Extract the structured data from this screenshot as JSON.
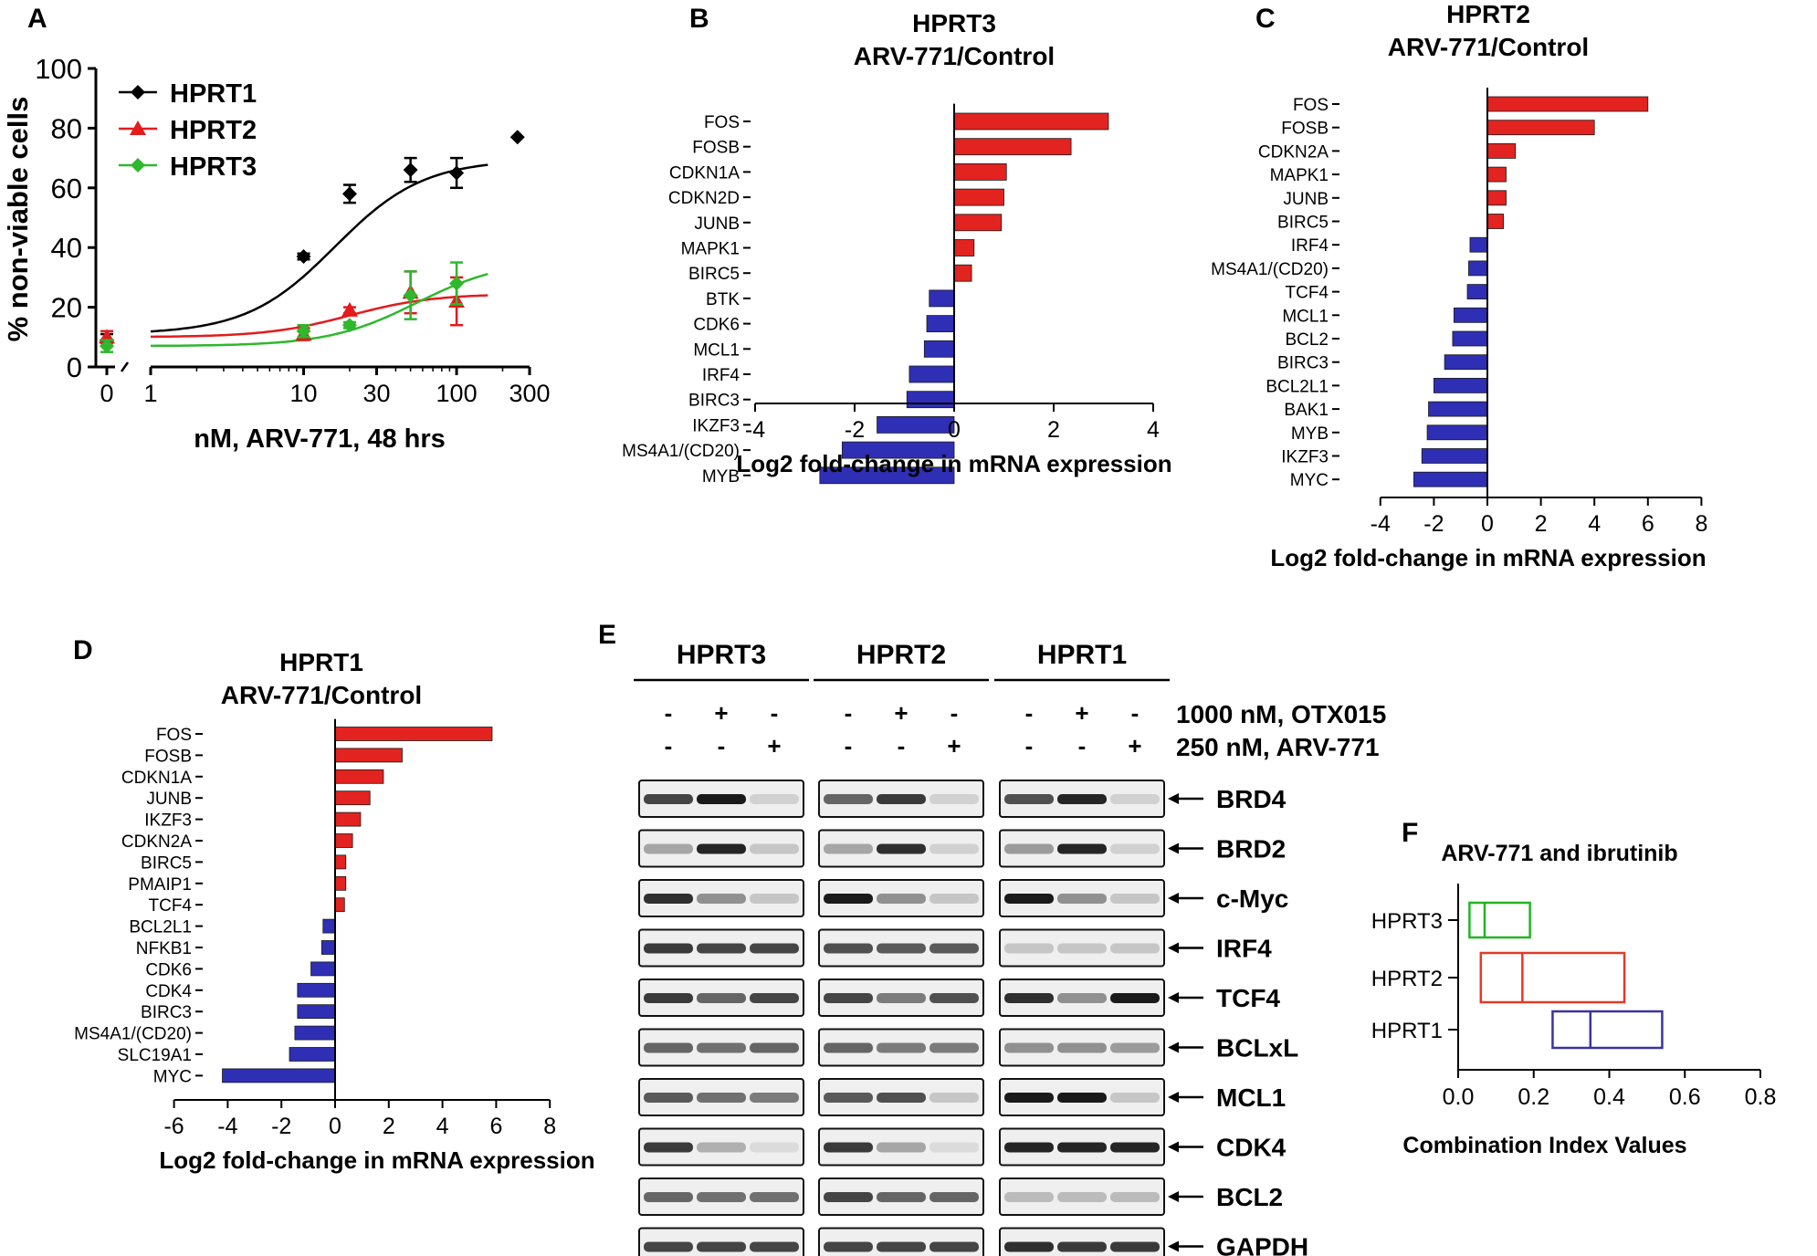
{
  "panel_labels": [
    "A",
    "B",
    "C",
    "D",
    "E",
    "F"
  ],
  "chart_data": [
    {
      "panel": "A",
      "type": "scatter",
      "title": "",
      "xlabel": "nM, ARV-771, 48 hrs",
      "ylabel": "% non-viable cells",
      "xscale": "log with 0 break",
      "xticks": [
        "0",
        "1",
        "10",
        "30",
        "100",
        "300"
      ],
      "yticks": [
        "0",
        "20",
        "40",
        "60",
        "80",
        "100"
      ],
      "ylim": [
        0,
        100
      ],
      "legend_position": "top-left",
      "colors": {
        "HPRT1": "#000000",
        "HPRT2": "#e41a1c",
        "HPRT3": "#2db82d"
      },
      "series": [
        {
          "name": "HPRT1",
          "marker": "diamond",
          "points": [
            {
              "x": 0,
              "y": 9,
              "err": 2
            },
            {
              "x": 10,
              "y": 37,
              "err": 1
            },
            {
              "x": 20,
              "y": 58,
              "err": 3
            },
            {
              "x": 50,
              "y": 66,
              "err": 4
            },
            {
              "x": 100,
              "y": 65,
              "err": 5
            },
            {
              "x": 250,
              "y": 77,
              "err": 0
            }
          ],
          "fit": {
            "bottom": 11,
            "top": 69.5,
            "ec50": 16,
            "hill": 1.5
          }
        },
        {
          "name": "HPRT2",
          "marker": "triangle",
          "points": [
            {
              "x": 0,
              "y": 10,
              "err": 2
            },
            {
              "x": 10,
              "y": 11,
              "err": 2
            },
            {
              "x": 20,
              "y": 19,
              "err": 1
            },
            {
              "x": 50,
              "y": 25,
              "err": 7
            },
            {
              "x": 100,
              "y": 22,
              "err": 8
            }
          ],
          "fit": {
            "bottom": 10,
            "top": 24.5,
            "ec50": 20,
            "hill": 1.6
          }
        },
        {
          "name": "HPRT3",
          "marker": "diamond",
          "points": [
            {
              "x": 0,
              "y": 7,
              "err": 2
            },
            {
              "x": 10,
              "y": 12,
              "err": 2
            },
            {
              "x": 20,
              "y": 14,
              "err": 1
            },
            {
              "x": 50,
              "y": 24,
              "err": 8
            },
            {
              "x": 100,
              "y": 28,
              "err": 7
            }
          ],
          "fit": {
            "bottom": 7,
            "top": 36,
            "ec50": 55,
            "hill": 1.5
          }
        }
      ]
    },
    {
      "panel": "B",
      "type": "bar",
      "orientation": "horizontal",
      "title": "HPRT3",
      "subtitle": "ARV-771/Control",
      "xlabel": "Log2 fold-change in mRNA expression",
      "xlim": [
        -4,
        4
      ],
      "xticks": [
        "-4",
        "-2",
        "0",
        "2",
        "4"
      ],
      "categories": [
        "FOS",
        "FOSB",
        "CDKN1A",
        "CDKN2D",
        "JUNB",
        "MAPK1",
        "BIRC5",
        "BTK",
        "CDK6",
        "MCL1",
        "IRF4",
        "BIRC3",
        "IKZF3",
        "MS4A1/(CD20)",
        "MYB"
      ],
      "values": [
        3.1,
        2.35,
        1.05,
        1.0,
        0.95,
        0.4,
        0.35,
        -0.5,
        -0.55,
        -0.6,
        -0.9,
        -0.95,
        -1.55,
        -2.25,
        -2.7
      ]
    },
    {
      "panel": "C",
      "type": "bar",
      "orientation": "horizontal",
      "title": "HPRT2",
      "subtitle": "ARV-771/Control",
      "xlabel": "Log2 fold-change in mRNA expression",
      "xlim": [
        -4,
        8
      ],
      "xticks": [
        "-4",
        "-2",
        "0",
        "2",
        "4",
        "6",
        "8"
      ],
      "categories": [
        "FOS",
        "FOSB",
        "CDKN2A",
        "MAPK1",
        "JUNB",
        "BIRC5",
        "IRF4",
        "MS4A1/(CD20)",
        "TCF4",
        "MCL1",
        "BCL2",
        "BIRC3",
        "BCL2L1",
        "BAK1",
        "MYB",
        "IKZF3",
        "MYC"
      ],
      "values": [
        6.0,
        4.0,
        1.05,
        0.7,
        0.7,
        0.6,
        -0.65,
        -0.7,
        -0.75,
        -1.25,
        -1.3,
        -1.6,
        -2.0,
        -2.2,
        -2.25,
        -2.45,
        -2.75
      ]
    },
    {
      "panel": "D",
      "type": "bar",
      "orientation": "horizontal",
      "title": "HPRT1",
      "subtitle": "ARV-771/Control",
      "xlabel": "Log2 fold-change in mRNA expression",
      "xlim": [
        -6,
        8
      ],
      "xticks": [
        "-6",
        "-4",
        "-2",
        "0",
        "2",
        "4",
        "6",
        "8"
      ],
      "categories": [
        "FOS",
        "FOSB",
        "CDKN1A",
        "JUNB",
        "IKZF3",
        "CDKN2A",
        "BIRC5",
        "PMAIP1",
        "TCF4",
        "BCL2L1",
        "NFKB1",
        "CDK6",
        "CDK4",
        "BIRC3",
        "MS4A1/(CD20)",
        "SLC19A1",
        "MYC"
      ],
      "values": [
        5.85,
        2.5,
        1.8,
        1.3,
        0.95,
        0.65,
        0.4,
        0.4,
        0.35,
        -0.45,
        -0.5,
        -0.9,
        -1.4,
        -1.4,
        -1.5,
        -1.7,
        -4.2
      ]
    },
    {
      "panel": "F",
      "type": "box",
      "orientation": "horizontal",
      "title": "ARV-771 and ibrutinib",
      "xlabel": "Combination Index Values",
      "xlim": [
        0,
        0.8
      ],
      "xticks": [
        "0.0",
        "0.2",
        "0.4",
        "0.6",
        "0.8"
      ],
      "categories": [
        "HPRT3",
        "HPRT2",
        "HPRT1"
      ],
      "colors": [
        "#22b522",
        "#e23a2a",
        "#3a34a0"
      ],
      "boxes": [
        {
          "name": "HPRT3",
          "min": 0.03,
          "median": 0.07,
          "max": 0.19
        },
        {
          "name": "HPRT2",
          "min": 0.06,
          "median": 0.17,
          "max": 0.44
        },
        {
          "name": "HPRT1",
          "min": 0.25,
          "median": 0.35,
          "max": 0.54
        }
      ]
    }
  ],
  "blot": {
    "cell_lines": [
      "HPRT3",
      "HPRT2",
      "HPRT1"
    ],
    "conditions": [
      {
        "label": "1000 nM, OTX015",
        "signs": [
          "-",
          "+",
          "-"
        ]
      },
      {
        "label": "250 nM, ARV-771",
        "signs": [
          "-",
          "-",
          "+"
        ]
      }
    ],
    "proteins": [
      {
        "name": "BRD4",
        "intensities": [
          [
            0.75,
            0.95,
            0.1
          ],
          [
            0.6,
            0.8,
            0.1
          ],
          [
            0.7,
            0.9,
            0.1
          ]
        ]
      },
      {
        "name": "BRD2",
        "intensities": [
          [
            0.3,
            0.9,
            0.15
          ],
          [
            0.3,
            0.85,
            0.1
          ],
          [
            0.35,
            0.9,
            0.1
          ]
        ]
      },
      {
        "name": "c-Myc",
        "intensities": [
          [
            0.85,
            0.4,
            0.15
          ],
          [
            0.95,
            0.4,
            0.15
          ],
          [
            0.95,
            0.4,
            0.15
          ]
        ]
      },
      {
        "name": "IRF4",
        "intensities": [
          [
            0.8,
            0.75,
            0.75
          ],
          [
            0.7,
            0.65,
            0.65
          ],
          [
            0.15,
            0.15,
            0.15
          ]
        ]
      },
      {
        "name": "TCF4",
        "intensities": [
          [
            0.8,
            0.6,
            0.75
          ],
          [
            0.75,
            0.5,
            0.7
          ],
          [
            0.85,
            0.4,
            0.95
          ]
        ]
      },
      {
        "name": "BCLxL",
        "intensities": [
          [
            0.6,
            0.55,
            0.6
          ],
          [
            0.6,
            0.5,
            0.5
          ],
          [
            0.4,
            0.4,
            0.35
          ]
        ]
      },
      {
        "name": "MCL1",
        "intensities": [
          [
            0.65,
            0.55,
            0.5
          ],
          [
            0.65,
            0.7,
            0.15
          ],
          [
            0.95,
            0.95,
            0.15
          ]
        ]
      },
      {
        "name": "CDK4",
        "intensities": [
          [
            0.8,
            0.25,
            0.05
          ],
          [
            0.8,
            0.3,
            0.05
          ],
          [
            0.9,
            0.9,
            0.9
          ]
        ]
      },
      {
        "name": "BCL2",
        "intensities": [
          [
            0.6,
            0.55,
            0.55
          ],
          [
            0.75,
            0.6,
            0.6
          ],
          [
            0.2,
            0.2,
            0.2
          ]
        ]
      },
      {
        "name": "GAPDH",
        "intensities": [
          [
            0.75,
            0.75,
            0.75
          ],
          [
            0.75,
            0.75,
            0.75
          ],
          [
            0.85,
            0.8,
            0.8
          ]
        ]
      }
    ]
  }
}
